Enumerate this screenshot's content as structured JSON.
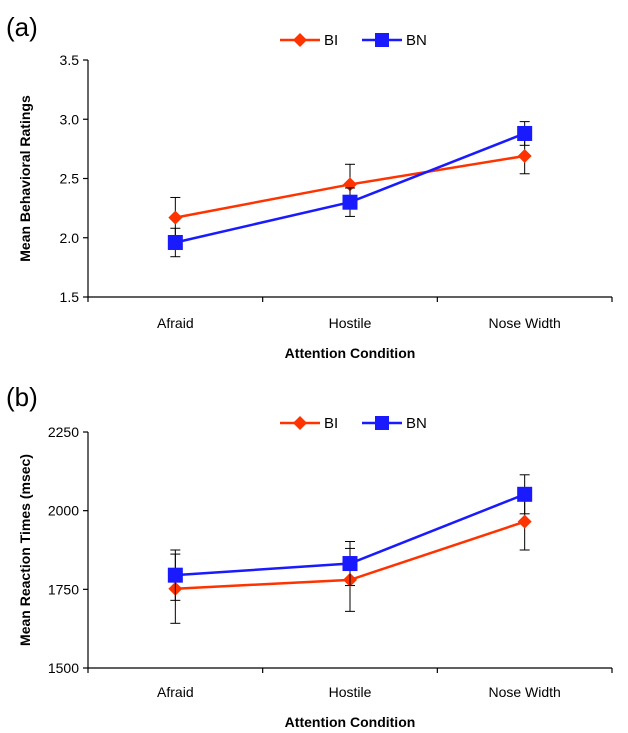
{
  "chart_data": [
    {
      "type": "line",
      "panel_label": "(a)",
      "categories": [
        "Afraid",
        "Hostile",
        "Nose Width"
      ],
      "xlabel": "Attention Condition",
      "ylabel": "Mean Behavioral Ratings",
      "ylim": [
        1.5,
        3.5
      ],
      "yticks": [
        "1.5",
        "2.0",
        "2.5",
        "3.0",
        "3.5"
      ],
      "grid": false,
      "legend_position": "top-center",
      "series": [
        {
          "name": "BI",
          "color": "#ff3300",
          "marker": "diamond",
          "values": [
            2.17,
            2.45,
            2.69
          ],
          "err": [
            0.17,
            0.17,
            0.15
          ]
        },
        {
          "name": "BN",
          "color": "#1a1aff",
          "marker": "square",
          "values": [
            1.96,
            2.3,
            2.88
          ],
          "err": [
            0.12,
            0.12,
            0.1
          ]
        }
      ]
    },
    {
      "type": "line",
      "panel_label": "(b)",
      "categories": [
        "Afraid",
        "Hostile",
        "Nose Width"
      ],
      "xlabel": "Attention Condition",
      "ylabel": "Mean Reaction Times (msec)",
      "ylim": [
        1500,
        2250
      ],
      "yticks": [
        "1500",
        "1750",
        "2000",
        "2250"
      ],
      "grid": false,
      "legend_position": "top-center",
      "series": [
        {
          "name": "BI",
          "color": "#ff3300",
          "marker": "diamond",
          "values": [
            1752,
            1780,
            1965
          ],
          "err": [
            110,
            100,
            90
          ]
        },
        {
          "name": "BN",
          "color": "#1a1aff",
          "marker": "square",
          "values": [
            1795,
            1832,
            2052
          ],
          "err": [
            80,
            70,
            62
          ]
        }
      ]
    }
  ]
}
